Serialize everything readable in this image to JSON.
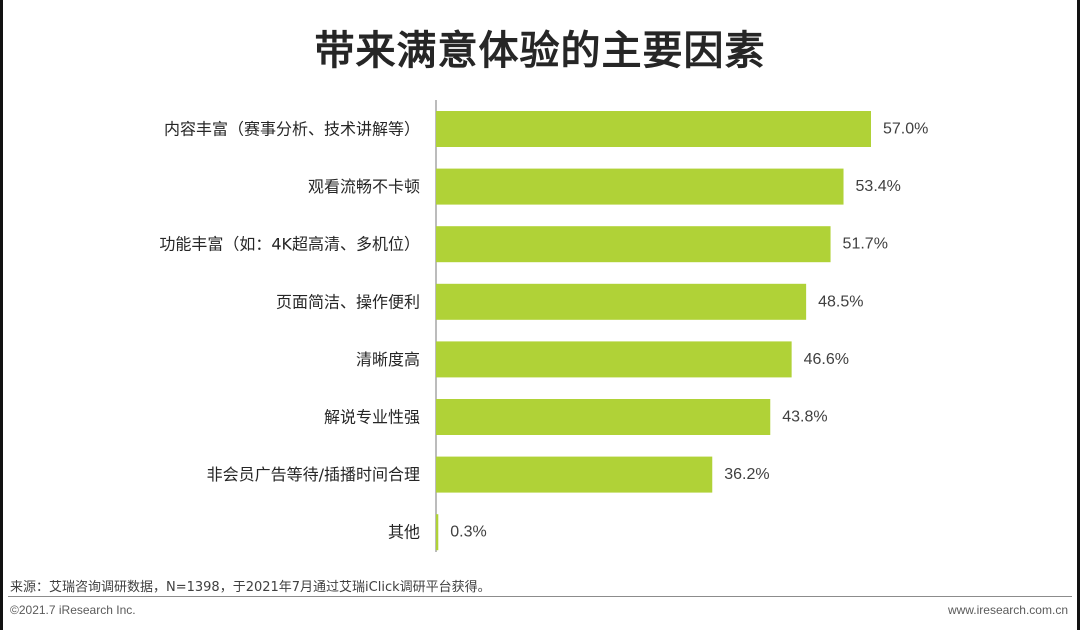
{
  "page": {
    "title": "带来满意体验的主要因素",
    "source": "来源：艾瑞咨询调研数据，N=1398，于2021年7月通过艾瑞iClick调研平台获得。",
    "copyright": "©2021.7 iResearch Inc.",
    "website": "www.iresearch.com.cn"
  },
  "chart_data": {
    "type": "bar",
    "orientation": "horizontal",
    "title": "带来满意体验的主要因素",
    "categories": [
      "内容丰富（赛事分析、技术讲解等）",
      "观看流畅不卡顿",
      "功能丰富（如：4K超高清、多机位）",
      "页面简洁、操作便利",
      "清晰度高",
      "解说专业性强",
      "非会员广告等待/插播时间合理",
      "其他"
    ],
    "values": [
      57.0,
      53.4,
      51.7,
      48.5,
      46.6,
      43.8,
      36.2,
      0.3
    ],
    "value_labels": [
      "57.0%",
      "53.4%",
      "51.7%",
      "48.5%",
      "46.6%",
      "43.8%",
      "36.2%",
      "0.3%"
    ],
    "unit": "%",
    "xlim": [
      0,
      60
    ],
    "bar_color": "#b0d237",
    "axis_color": "#a6a6a6",
    "grid": false,
    "legend": "none"
  }
}
